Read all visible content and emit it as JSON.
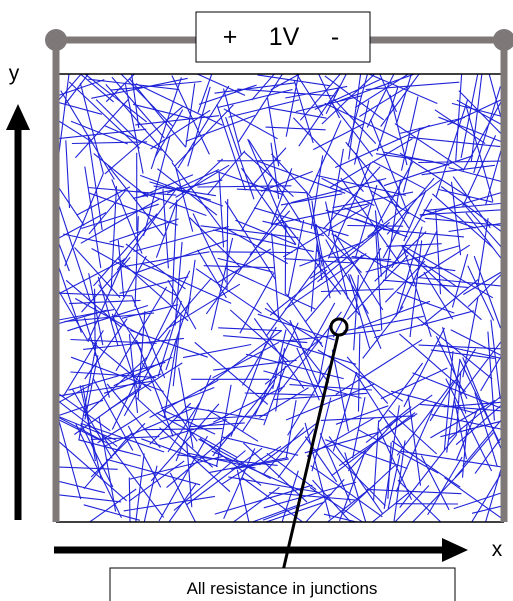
{
  "battery": {
    "positive": "+",
    "voltage": "1V",
    "negative": "-"
  },
  "axes": {
    "x_label": "x",
    "y_label": "y"
  },
  "annotation": {
    "caption": "All resistance in junctions"
  },
  "network": {
    "wire_count": 600
  },
  "colors": {
    "wire": "#1f23d8",
    "frame": "#7f7878",
    "ink": "#000000"
  }
}
